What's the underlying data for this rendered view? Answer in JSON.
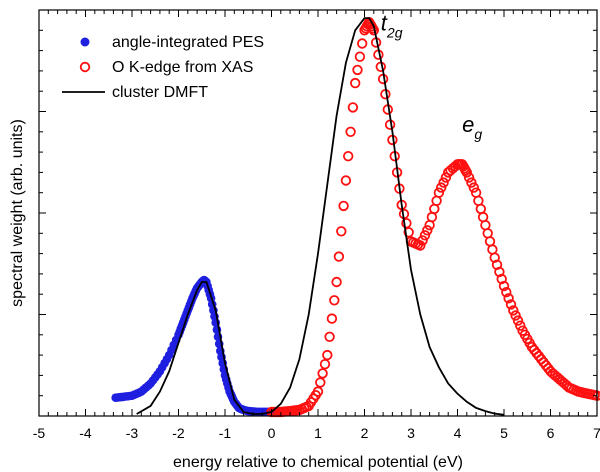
{
  "chart_data": {
    "type": "scatter",
    "xlabel": "energy relative to chemical potential (eV)",
    "ylabel": "spectral weight (arb. units)",
    "xlim": [
      -5,
      7
    ],
    "ylim": [
      0,
      1.0
    ],
    "x_ticks": [
      "-5",
      "-4",
      "-3",
      "-2",
      "-1",
      "0",
      "1",
      "2",
      "3",
      "4",
      "5",
      "6",
      "7"
    ],
    "legend": {
      "position": "top-left"
    },
    "series": [
      {
        "name": "angle-integrated PES",
        "style": "filled-circle",
        "color": "#1f1fe0",
        "x": [
          -3.35,
          -3.2,
          -3.0,
          -2.8,
          -2.6,
          -2.4,
          -2.2,
          -2.0,
          -1.9,
          -1.8,
          -1.7,
          -1.6,
          -1.5,
          -1.45,
          -1.4,
          -1.3,
          -1.2,
          -1.1,
          -1.0,
          -0.9,
          -0.8,
          -0.7,
          -0.6,
          -0.5,
          -0.4,
          -0.3,
          -0.2,
          -0.1,
          0.0
        ],
        "y": [
          0.045,
          0.047,
          0.05,
          0.06,
          0.08,
          0.11,
          0.15,
          0.2,
          0.23,
          0.26,
          0.29,
          0.315,
          0.33,
          0.335,
          0.33,
          0.29,
          0.23,
          0.16,
          0.1,
          0.06,
          0.035,
          0.02,
          0.015,
          0.012,
          0.011,
          0.01,
          0.01,
          0.01,
          0.01
        ]
      },
      {
        "name": "O K-edge from XAS",
        "style": "open-circle",
        "color": "#ff1010",
        "x": [
          0.0,
          0.2,
          0.4,
          0.6,
          0.8,
          1.0,
          1.2,
          1.4,
          1.6,
          1.8,
          2.0,
          2.1,
          2.2,
          2.4,
          2.6,
          2.8,
          3.0,
          3.2,
          3.4,
          3.6,
          3.8,
          4.0,
          4.1,
          4.2,
          4.4,
          4.6,
          4.8,
          5.0,
          5.2,
          5.4,
          5.6,
          5.8,
          6.0,
          6.2,
          6.4,
          6.6,
          6.8,
          7.0
        ],
        "y": [
          0.01,
          0.01,
          0.012,
          0.015,
          0.025,
          0.06,
          0.15,
          0.33,
          0.58,
          0.82,
          0.95,
          0.97,
          0.95,
          0.83,
          0.68,
          0.52,
          0.43,
          0.42,
          0.47,
          0.55,
          0.6,
          0.62,
          0.62,
          0.6,
          0.55,
          0.47,
          0.39,
          0.32,
          0.26,
          0.21,
          0.17,
          0.14,
          0.11,
          0.09,
          0.07,
          0.06,
          0.055,
          0.05
        ]
      },
      {
        "name": "cluster DMFT",
        "style": "line",
        "color": "#000000",
        "x": [
          -2.9,
          -2.6,
          -2.4,
          -2.2,
          -2.0,
          -1.8,
          -1.6,
          -1.5,
          -1.4,
          -1.2,
          -1.0,
          -0.8,
          -0.6,
          -0.4,
          -0.2,
          0.0,
          0.2,
          0.4,
          0.6,
          0.8,
          1.0,
          1.2,
          1.4,
          1.6,
          1.8,
          2.0,
          2.1,
          2.2,
          2.4,
          2.6,
          2.8,
          3.0,
          3.2,
          3.4,
          3.6,
          3.8,
          4.0,
          4.2,
          4.4,
          4.6,
          4.8,
          5.0
        ],
        "y": [
          0.005,
          0.025,
          0.06,
          0.11,
          0.18,
          0.25,
          0.31,
          0.33,
          0.33,
          0.26,
          0.13,
          0.04,
          0.01,
          0.005,
          0.005,
          0.01,
          0.03,
          0.07,
          0.14,
          0.25,
          0.4,
          0.57,
          0.74,
          0.87,
          0.95,
          0.98,
          0.98,
          0.96,
          0.85,
          0.7,
          0.52,
          0.36,
          0.25,
          0.17,
          0.12,
          0.08,
          0.055,
          0.035,
          0.02,
          0.012,
          0.006,
          0.003
        ]
      }
    ],
    "annotations": [
      {
        "base": "t",
        "sub": "2g",
        "x": 2.35,
        "y": 0.95
      },
      {
        "base": "e",
        "sub": "g",
        "x": 4.1,
        "y": 0.7
      }
    ]
  }
}
